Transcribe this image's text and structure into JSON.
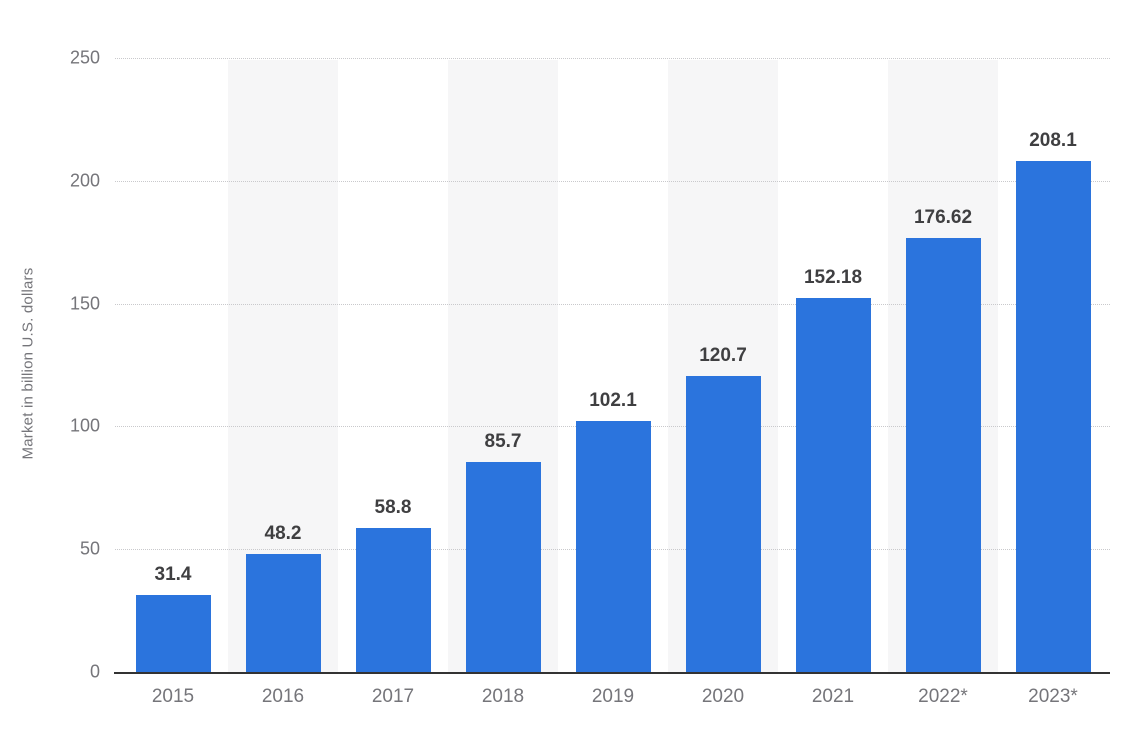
{
  "chart_data": {
    "type": "bar",
    "title": "",
    "xlabel": "",
    "ylabel": "Market in billion U.S. dollars",
    "categories": [
      "2015",
      "2016",
      "2017",
      "2018",
      "2019",
      "2020",
      "2021",
      "2022*",
      "2023*"
    ],
    "values": [
      31.4,
      48.2,
      58.8,
      85.7,
      102.1,
      120.7,
      152.18,
      176.62,
      208.1
    ],
    "value_labels": [
      "31.4",
      "48.2",
      "58.8",
      "85.7",
      "102.1",
      "120.7",
      "152.18",
      "176.62",
      "208.1"
    ],
    "ylim": [
      0,
      250
    ],
    "yticks": [
      0,
      50,
      100,
      150,
      200,
      250
    ],
    "grid": "horizontal-dotted",
    "legend": "none",
    "column_stripes": "alternating-starting-second-column",
    "colors": {
      "bar": "#2b74dd",
      "column_stripe": "#f6f6f7",
      "gridline": "#c9c9cc",
      "axis_line": "#333333",
      "value_label_text": "#3f3f41",
      "tick_label_text": "#75757a"
    }
  }
}
